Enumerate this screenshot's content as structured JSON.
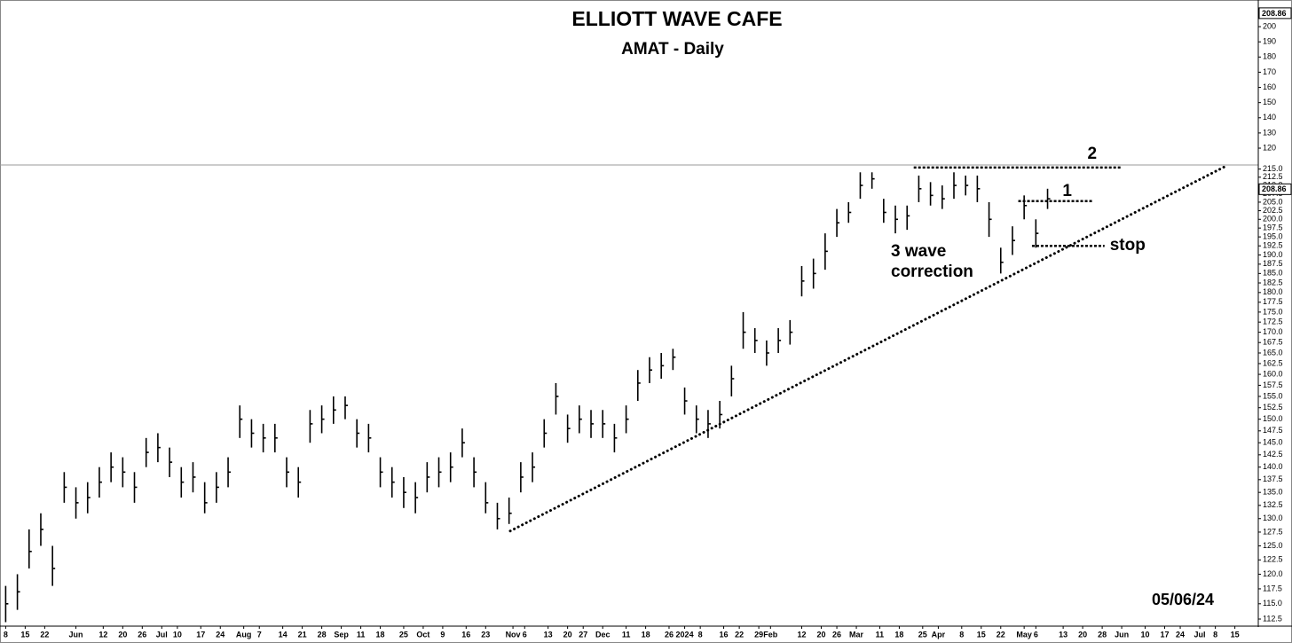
{
  "chart_data": [
    {
      "type": "ohlc",
      "title": "ELLIOTT WAVE CAFE",
      "subtitle": "AMAT - Daily",
      "date_label": "05/06/24",
      "color": "#000000",
      "log_scale": true,
      "grid": false,
      "x": [
        0,
        3,
        6,
        9,
        12,
        15,
        18,
        21,
        24,
        27,
        30,
        33,
        36,
        39,
        42,
        45,
        48,
        51,
        54,
        57,
        60,
        63,
        66,
        69,
        72,
        75,
        78,
        81,
        84,
        87,
        90,
        93,
        96,
        99,
        102,
        105,
        108,
        111,
        114,
        117,
        120,
        123,
        126,
        129,
        132,
        135,
        138,
        141,
        144,
        147,
        150,
        153,
        156,
        159,
        162,
        165,
        168,
        171,
        174,
        177,
        180,
        183,
        186,
        189,
        192,
        195,
        198,
        201,
        204,
        207,
        210,
        213,
        216,
        219,
        222,
        225,
        228,
        231,
        234,
        237,
        240,
        243,
        246,
        249,
        252,
        255,
        258,
        261,
        264,
        267
      ],
      "high": [
        118,
        120,
        128,
        131,
        125,
        139,
        136,
        137,
        140,
        143,
        142,
        139,
        146,
        147,
        144,
        140,
        141,
        137,
        139,
        142,
        153,
        150,
        149,
        149,
        142,
        140,
        152,
        153,
        155,
        155,
        150,
        149,
        142,
        140,
        138,
        137,
        141,
        142,
        143,
        148,
        142,
        137,
        133,
        134,
        141,
        143,
        150,
        158,
        151,
        153,
        152,
        152,
        149,
        153,
        161,
        164,
        165,
        166,
        157,
        153,
        152,
        154,
        162,
        175,
        171,
        168,
        171,
        173,
        187,
        189,
        196,
        203,
        205,
        214,
        214,
        206,
        204,
        204,
        213,
        211,
        210,
        214,
        213,
        213,
        205,
        192,
        198,
        207,
        200,
        209
      ],
      "low": [
        112,
        114,
        121,
        125,
        118,
        133,
        130,
        131,
        134,
        137,
        136,
        133,
        140,
        141,
        138,
        134,
        135,
        131,
        133,
        136,
        146,
        144,
        143,
        143,
        136,
        134,
        145,
        147,
        149,
        150,
        144,
        143,
        136,
        134,
        132,
        131,
        135,
        136,
        137,
        142,
        136,
        131,
        128,
        129,
        135,
        137,
        144,
        151,
        145,
        147,
        146,
        146,
        143,
        147,
        154,
        158,
        159,
        161,
        151,
        147,
        146,
        148,
        155,
        166,
        165,
        162,
        165,
        167,
        179,
        181,
        186,
        195,
        199,
        206,
        209,
        199,
        196,
        197,
        205,
        204,
        203,
        206,
        207,
        205,
        195,
        185,
        190,
        200,
        192,
        203
      ],
      "close": [
        115,
        117,
        124,
        128,
        121,
        136,
        133,
        134,
        137,
        140,
        139,
        136,
        143,
        144,
        141,
        137,
        138,
        133,
        136,
        139,
        150,
        147,
        146,
        146,
        139,
        137,
        149,
        150,
        152,
        153,
        147,
        146,
        139,
        137,
        135,
        134,
        138,
        139,
        140,
        145,
        139,
        133,
        130,
        131,
        138,
        140,
        147,
        155,
        148,
        150,
        149,
        149,
        146,
        150,
        158,
        161,
        162,
        164,
        154,
        150,
        149,
        151,
        159,
        170,
        168,
        165,
        168,
        170,
        183,
        185,
        191,
        199,
        202,
        210,
        212,
        202,
        200,
        201,
        209,
        207,
        206,
        210,
        210,
        209,
        200,
        188,
        194,
        204,
        196,
        206
      ],
      "last_value": 208.86,
      "xlim": [
        -1,
        321
      ],
      "xticks": [
        {
          "value": 0,
          "label": "8"
        },
        {
          "value": 5,
          "label": "15"
        },
        {
          "value": 10,
          "label": "22"
        },
        {
          "value": 18,
          "label": "Jun"
        },
        {
          "value": 25,
          "label": "12"
        },
        {
          "value": 30,
          "label": "20"
        },
        {
          "value": 35,
          "label": "26"
        },
        {
          "value": 40,
          "label": "Jul"
        },
        {
          "value": 44,
          "label": "10"
        },
        {
          "value": 50,
          "label": "17"
        },
        {
          "value": 55,
          "label": "24"
        },
        {
          "value": 61,
          "label": "Aug"
        },
        {
          "value": 65,
          "label": "7"
        },
        {
          "value": 71,
          "label": "14"
        },
        {
          "value": 76,
          "label": "21"
        },
        {
          "value": 81,
          "label": "28"
        },
        {
          "value": 86,
          "label": "Sep"
        },
        {
          "value": 91,
          "label": "11"
        },
        {
          "value": 96,
          "label": "18"
        },
        {
          "value": 102,
          "label": "25"
        },
        {
          "value": 107,
          "label": "Oct"
        },
        {
          "value": 112,
          "label": "9"
        },
        {
          "value": 118,
          "label": "16"
        },
        {
          "value": 123,
          "label": "23"
        },
        {
          "value": 130,
          "label": "Nov"
        },
        {
          "value": 133,
          "label": "6"
        },
        {
          "value": 139,
          "label": "13"
        },
        {
          "value": 144,
          "label": "20"
        },
        {
          "value": 148,
          "label": "27"
        },
        {
          "value": 153,
          "label": "Dec"
        },
        {
          "value": 159,
          "label": "11"
        },
        {
          "value": 164,
          "label": "18"
        },
        {
          "value": 170,
          "label": "26"
        },
        {
          "value": 174,
          "label": "2024"
        },
        {
          "value": 178,
          "label": "8"
        },
        {
          "value": 184,
          "label": "16"
        },
        {
          "value": 188,
          "label": "22"
        },
        {
          "value": 193,
          "label": "29"
        },
        {
          "value": 196,
          "label": "Feb"
        },
        {
          "value": 204,
          "label": "12"
        },
        {
          "value": 209,
          "label": "20"
        },
        {
          "value": 213,
          "label": "26"
        },
        {
          "value": 218,
          "label": "Mar"
        },
        {
          "value": 224,
          "label": "11"
        },
        {
          "value": 229,
          "label": "18"
        },
        {
          "value": 235,
          "label": "25"
        },
        {
          "value": 239,
          "label": "Apr"
        },
        {
          "value": 245,
          "label": "8"
        },
        {
          "value": 250,
          "label": "15"
        },
        {
          "value": 255,
          "label": "22"
        },
        {
          "value": 261,
          "label": "May"
        },
        {
          "value": 264,
          "label": "6"
        },
        {
          "value": 271,
          "label": "13"
        },
        {
          "value": 276,
          "label": "20"
        },
        {
          "value": 281,
          "label": "28"
        },
        {
          "value": 286,
          "label": "Jun"
        },
        {
          "value": 292,
          "label": "10"
        },
        {
          "value": 297,
          "label": "17"
        },
        {
          "value": 301,
          "label": "24"
        },
        {
          "value": 306,
          "label": "Jul"
        },
        {
          "value": 310,
          "label": "8"
        },
        {
          "value": 315,
          "label": "15"
        }
      ],
      "ylim": [
        111.5,
        216
      ],
      "yticks": [
        112.5,
        {
          "value": 115,
          "label": "115.0"
        },
        117.5,
        {
          "value": 120,
          "label": "120.0"
        },
        122.5,
        {
          "value": 125,
          "label": "125.0"
        },
        127.5,
        {
          "value": 130,
          "label": "130.0"
        },
        132.5,
        {
          "value": 135,
          "label": "135.0"
        },
        137.5,
        {
          "value": 140,
          "label": "140.0"
        },
        142.5,
        {
          "value": 145,
          "label": "145.0"
        },
        147.5,
        {
          "value": 150,
          "label": "150.0"
        },
        152.5,
        {
          "value": 155,
          "label": "155.0"
        },
        157.5,
        {
          "value": 160,
          "label": "160.0"
        },
        162.5,
        {
          "value": 165,
          "label": "165.0"
        },
        167.5,
        {
          "value": 170,
          "label": "170.0"
        },
        172.5,
        {
          "value": 175,
          "label": "175.0"
        },
        177.5,
        {
          "value": 180,
          "label": "180.0"
        },
        182.5,
        {
          "value": 185,
          "label": "185.0"
        },
        187.5,
        {
          "value": 190,
          "label": "190.0"
        },
        192.5,
        {
          "value": 195,
          "label": "195.0"
        },
        197.5,
        {
          "value": 200,
          "label": "200.0"
        },
        202.5,
        {
          "value": 205,
          "label": "205.0"
        },
        207.5,
        {
          "value": 210,
          "label": "210.0"
        },
        212.5,
        {
          "value": 215,
          "label": "215.0"
        }
      ],
      "annotations": [
        "3 wave",
        "correction"
      ],
      "levels": [
        {
          "label": "2",
          "value": 215.5,
          "x": [
            232.7,
            285.7
          ]
        },
        {
          "label": "1",
          "value": 205.3,
          "x": [
            259.5,
            278.4
          ]
        },
        {
          "label": "stop",
          "value": 192.5,
          "x": [
            263,
            281.6
          ]
        }
      ],
      "trendline": {
        "x": [
          129.3,
          312.5
        ],
        "y": [
          127.7,
          215.8
        ]
      }
    },
    {
      "type": "panel",
      "last_value": 208.86,
      "ylim": [
        109.5,
        215.8
      ],
      "yticks": [
        120,
        130,
        140,
        150,
        160,
        170,
        180,
        190,
        200
      ]
    }
  ]
}
